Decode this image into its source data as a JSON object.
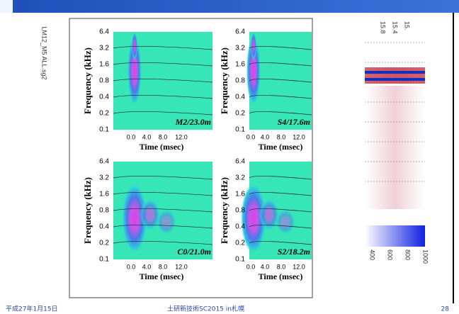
{
  "figure_file": "LM12_M5 ALL.sg2",
  "axes": {
    "ylabel": "Frequency (kHz)",
    "xlabel": "Time (msec)",
    "yticks": [
      "6.4",
      "3.2",
      "1.6",
      "0.8",
      "0.4",
      "0.2",
      "0.1"
    ],
    "xticks": [
      "0.0",
      "4.0",
      "8.0",
      "12.0"
    ]
  },
  "panels": [
    {
      "label": "M2/23.0m"
    },
    {
      "label": "S4/17.6m"
    },
    {
      "label": "C0/21.0m"
    },
    {
      "label": "S2/18.2m"
    }
  ],
  "side_image": {
    "top_labels": [
      "15.8",
      "15.4",
      "15."
    ],
    "scale_labels": [
      "1000",
      "800",
      "600",
      "400"
    ]
  },
  "footer": {
    "date": "平成27年1月15日",
    "event": "土研新技術SC2015 in札幌",
    "page": "28"
  }
}
